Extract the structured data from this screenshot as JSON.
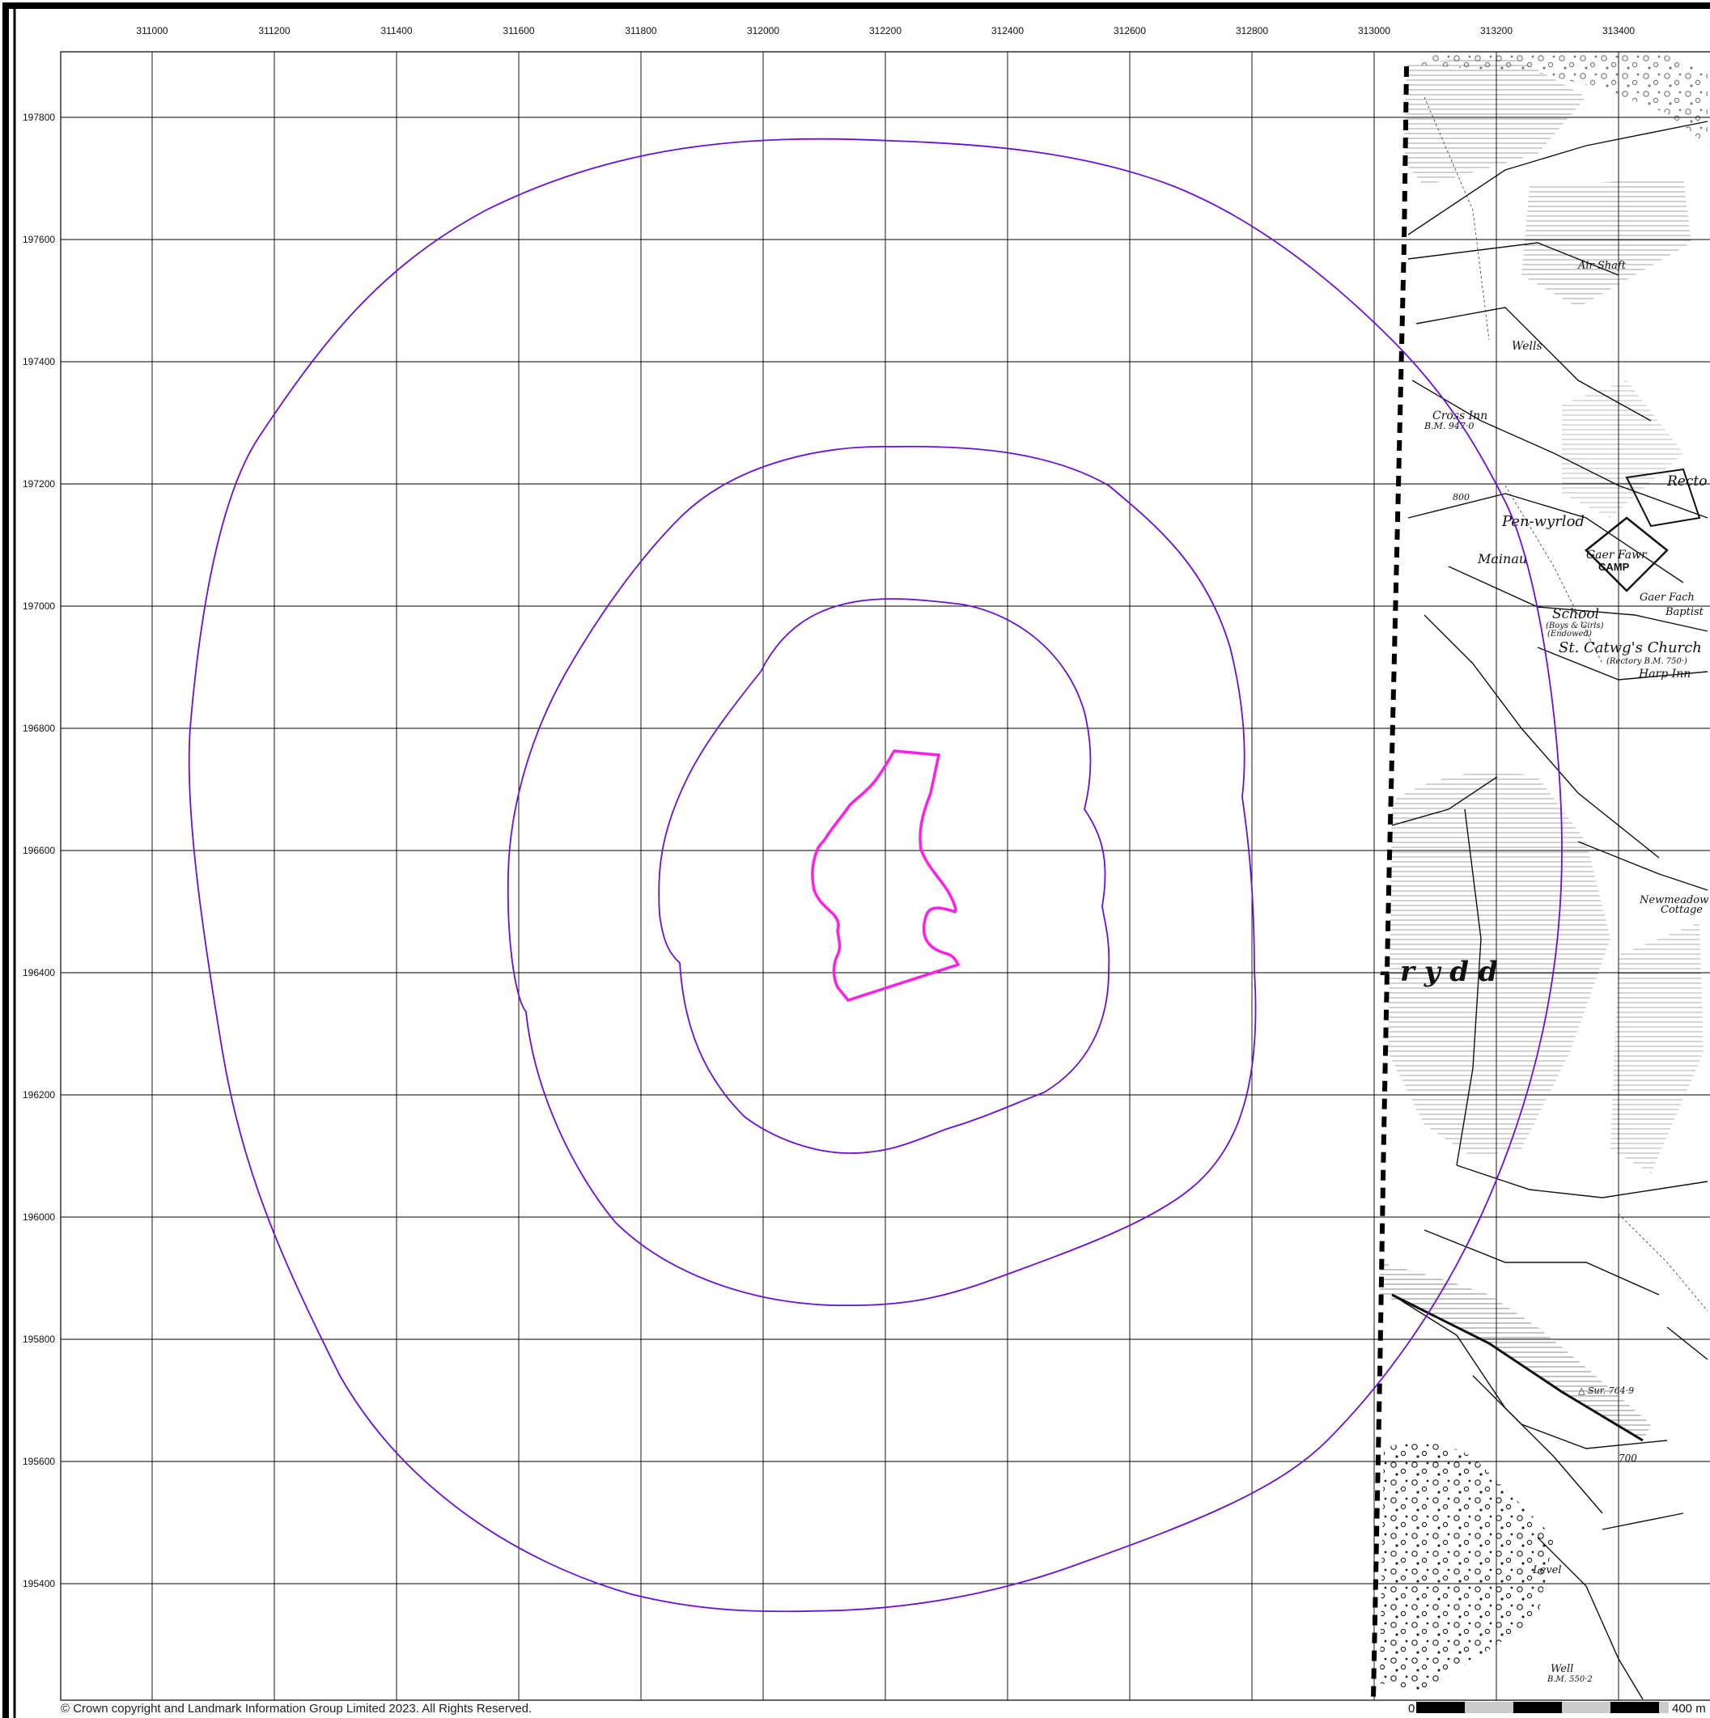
{
  "map": {
    "copyright": "© Crown copyright and Landmark Information Group Limited 2023.  All Rights Reserved.",
    "easting_ticks": [
      311000,
      311200,
      311400,
      311600,
      311800,
      312000,
      312200,
      312400,
      312600,
      312800,
      313000,
      313200,
      313400
    ],
    "northing_ticks": [
      197800,
      197600,
      197400,
      197200,
      197000,
      196800,
      196600,
      196400,
      196200,
      196000,
      195800,
      195600,
      195400
    ],
    "buffer_color": "#6a0fd6",
    "site_color": "#ff1ee6",
    "scale_bar": {
      "start_label": "0",
      "end_label": "400 m"
    },
    "historic_labels": [
      {
        "id": "air-shaft",
        "text": "Air Shaft"
      },
      {
        "id": "wells",
        "text": "Wells"
      },
      {
        "id": "cross-inn",
        "text": "Cross Inn"
      },
      {
        "id": "bm-1",
        "text": "B.M. 947·0"
      },
      {
        "id": "bm-800",
        "text": "800"
      },
      {
        "id": "pen-wyrlod",
        "text": "Pen-wyrlod"
      },
      {
        "id": "mainau",
        "text": "Mainau"
      },
      {
        "id": "gaer-fawr",
        "text": "Gaer Fawr"
      },
      {
        "id": "camp",
        "text": "CAMP"
      },
      {
        "id": "school",
        "text": "School"
      },
      {
        "id": "school-sub",
        "text": "(Boys & Girls)"
      },
      {
        "id": "school-sub2",
        "text": "(Endowed)"
      },
      {
        "id": "gaer-fach",
        "text": "Gaer Fach"
      },
      {
        "id": "baptist",
        "text": "Baptist"
      },
      {
        "id": "st-catwgs",
        "text": "St. Catwg's Church"
      },
      {
        "id": "rectory-bm",
        "text": "(Rectory B.M. 750·)"
      },
      {
        "id": "harp-inn",
        "text": "Harp Inn"
      },
      {
        "id": "rector",
        "text": "Recto"
      },
      {
        "id": "newmeadow",
        "text": "Newmeadow"
      },
      {
        "id": "cottage",
        "text": "Cottage"
      },
      {
        "id": "rydd",
        "text": "- r y d d"
      },
      {
        "id": "sur",
        "text": "△ Sur. 764·9"
      },
      {
        "id": "bm-700",
        "text": "700"
      },
      {
        "id": "level",
        "text": "Level"
      },
      {
        "id": "well",
        "text": "Well"
      },
      {
        "id": "bm-550",
        "text": "B.M. 550·2"
      }
    ]
  }
}
